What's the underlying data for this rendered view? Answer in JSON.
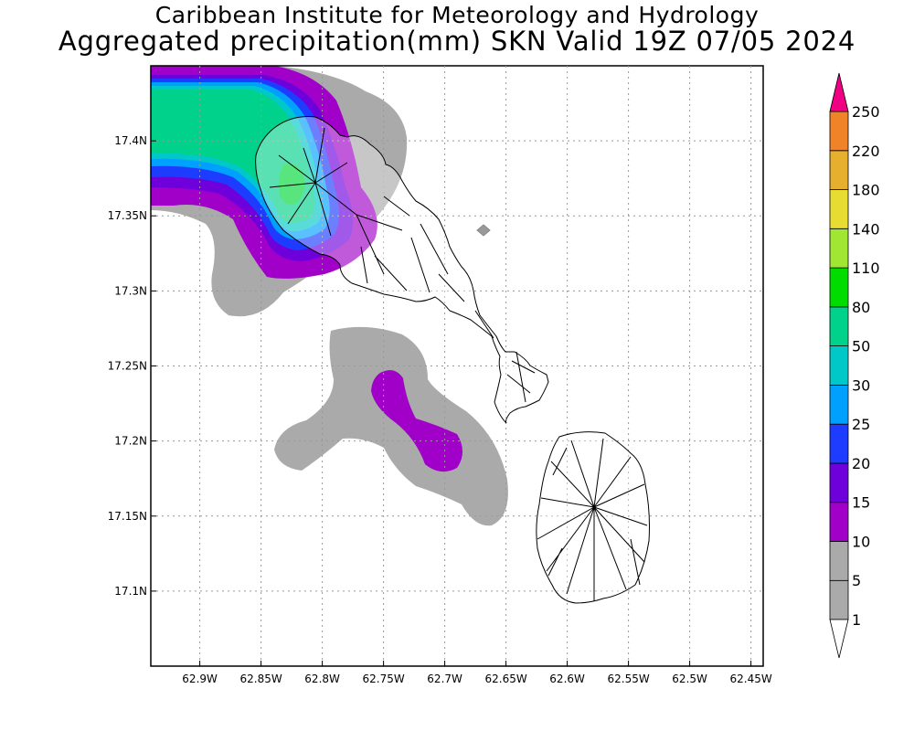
{
  "header": {
    "line1": "Caribbean Institute for Meteorology and Hydrology",
    "line2": "Aggregated precipitation(mm) SKN Valid 19Z 07/05 2024"
  },
  "map": {
    "lon_range": [
      -62.94,
      -62.44
    ],
    "lat_range": [
      17.05,
      17.45
    ],
    "x_ticks": [
      {
        "lon": -62.9,
        "label": "62.9W"
      },
      {
        "lon": -62.85,
        "label": "62.85W"
      },
      {
        "lon": -62.8,
        "label": "62.8W"
      },
      {
        "lon": -62.75,
        "label": "62.75W"
      },
      {
        "lon": -62.7,
        "label": "62.7W"
      },
      {
        "lon": -62.65,
        "label": "62.65W"
      },
      {
        "lon": -62.6,
        "label": "62.6W"
      },
      {
        "lon": -62.55,
        "label": "62.55W"
      },
      {
        "lon": -62.5,
        "label": "62.5W"
      },
      {
        "lon": -62.45,
        "label": "62.45W"
      }
    ],
    "y_ticks": [
      {
        "lat": 17.4,
        "label": "17.4N"
      },
      {
        "lat": 17.35,
        "label": "17.35N"
      },
      {
        "lat": 17.3,
        "label": "17.3N"
      },
      {
        "lat": 17.25,
        "label": "17.25N"
      },
      {
        "lat": 17.2,
        "label": "17.2N"
      },
      {
        "lat": 17.15,
        "label": "17.15N"
      },
      {
        "lat": 17.1,
        "label": "17.1N"
      }
    ],
    "grid": true
  },
  "colorbar": {
    "levels": [
      {
        "label": "1",
        "color": "#aaaaaa"
      },
      {
        "label": "5",
        "color": "#aaaaaa"
      },
      {
        "label": "10",
        "color": "#a000c8"
      },
      {
        "label": "15",
        "color": "#6e00dc"
      },
      {
        "label": "20",
        "color": "#1e3cff"
      },
      {
        "label": "25",
        "color": "#00a0ff"
      },
      {
        "label": "30",
        "color": "#00c8c8"
      },
      {
        "label": "50",
        "color": "#00d28c"
      },
      {
        "label": "80",
        "color": "#00dc00"
      },
      {
        "label": "110",
        "color": "#a0e632"
      },
      {
        "label": "140",
        "color": "#e6dc32"
      },
      {
        "label": "180",
        "color": "#e6af2d"
      },
      {
        "label": "220",
        "color": "#f08228"
      },
      {
        "label": "250",
        "color": "#fa3c3c"
      }
    ],
    "above_color": "#f00082",
    "below_color": "#ffffff"
  }
}
